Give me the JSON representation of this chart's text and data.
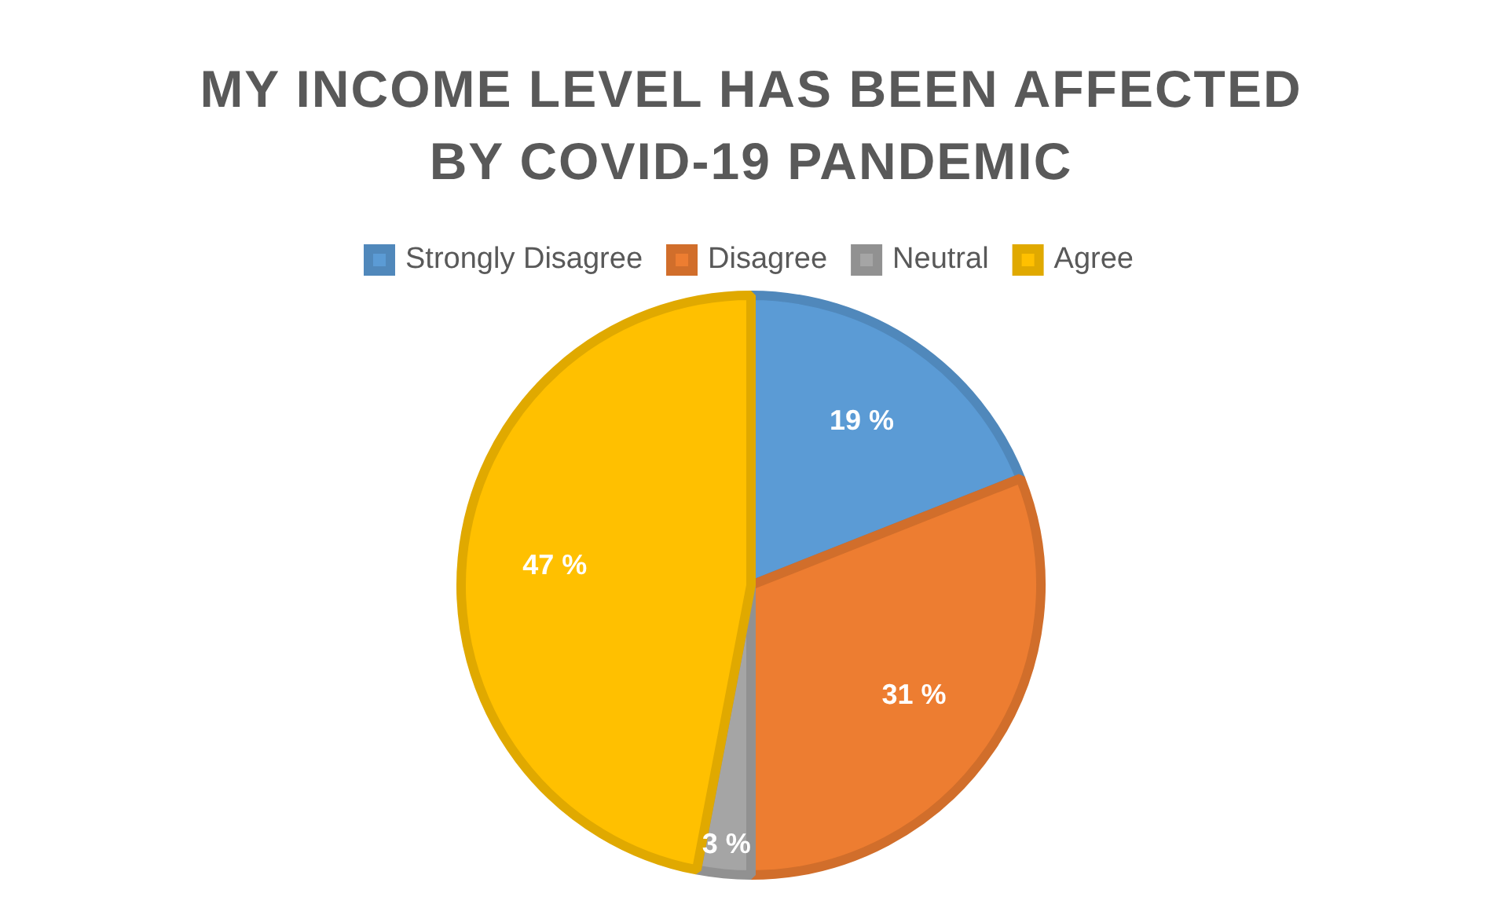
{
  "chart_data": {
    "type": "pie",
    "title": "MY INCOME LEVEL HAS BEEN AFFECTED BY COVID-19 PANDEMIC",
    "categories": [
      "Strongly Disagree",
      "Disagree",
      "Neutral",
      "Agree"
    ],
    "values": [
      19,
      31,
      3,
      47
    ],
    "value_labels": [
      "19 %",
      "31 %",
      "3 %",
      "47 %"
    ],
    "colors": [
      "#5b9bd5",
      "#ed7d31",
      "#a5a5a5",
      "#ffc000"
    ],
    "legend": "top"
  }
}
